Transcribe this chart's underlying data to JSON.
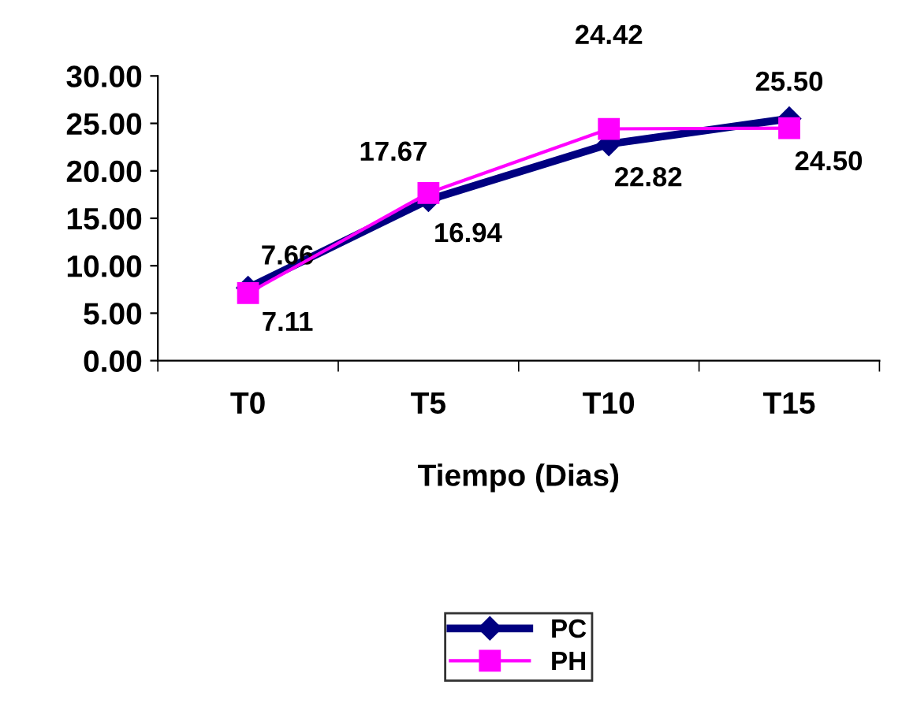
{
  "chart_data": {
    "type": "line",
    "xlabel": "Tiempo (Dias)",
    "categories": [
      "T0",
      "T5",
      "T10",
      "T15"
    ],
    "series": [
      {
        "name": "PC",
        "color": "#000080",
        "marker": "diamond",
        "values": [
          7.66,
          16.94,
          22.82,
          25.5
        ],
        "value_labels": [
          "7.66",
          "16.94",
          "22.82",
          "25.50"
        ]
      },
      {
        "name": "PH",
        "color": "#ff00ff",
        "marker": "square",
        "values": [
          7.11,
          17.67,
          24.42,
          24.5
        ],
        "value_labels": [
          "7.11",
          "17.67",
          "24.42",
          "24.50"
        ]
      }
    ],
    "ylim": [
      0,
      30
    ],
    "yticks": [
      {
        "value": 0,
        "label": "0.00"
      },
      {
        "value": 5,
        "label": "5.00"
      },
      {
        "value": 10,
        "label": "10.00"
      },
      {
        "value": 15,
        "label": "15.00"
      },
      {
        "value": 20,
        "label": "20.00"
      },
      {
        "value": 25,
        "label": "25.00"
      },
      {
        "value": 30,
        "label": "30.00"
      }
    ],
    "grid": false,
    "legend": "bottom"
  }
}
